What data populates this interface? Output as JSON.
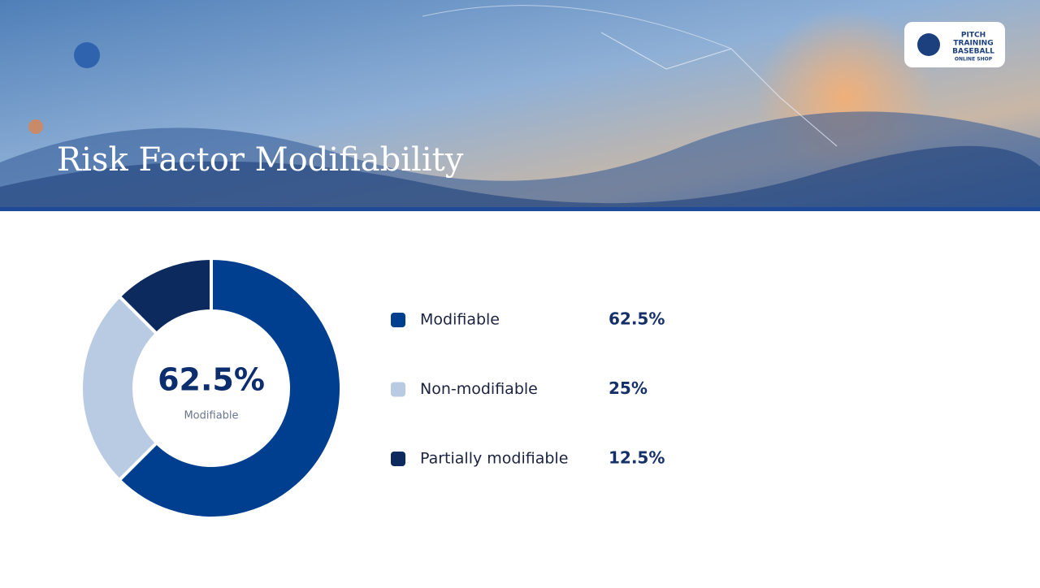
{
  "chart_data": {
    "type": "pie",
    "title": "Risk Factor Modifiability",
    "categories": [
      "Modifiable",
      "Non-modifiable",
      "Partially modifiable"
    ],
    "values": [
      62.5,
      25,
      12.5
    ],
    "value_labels": [
      "62.5%",
      "25%",
      "12.5%"
    ],
    "colors": [
      "#003f8f",
      "#b9cbe2",
      "#0c2a5e"
    ]
  },
  "logo": {
    "lines": [
      "PITCH",
      "TRAINING",
      "BASEBALL",
      "ONLINE SHOP"
    ]
  }
}
